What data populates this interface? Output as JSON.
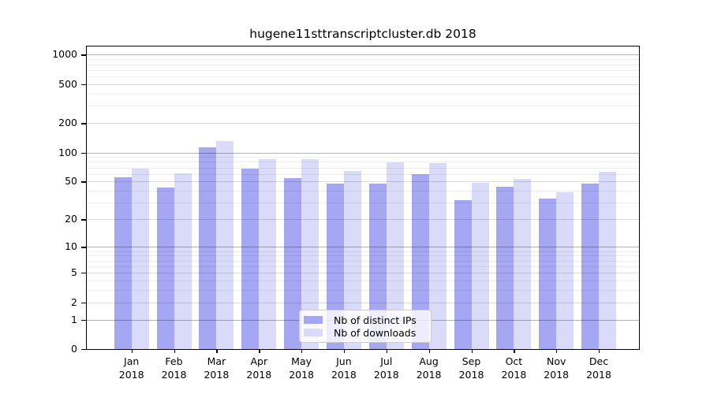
{
  "title": "hugene11sttranscriptcluster.db 2018",
  "colors": {
    "ips": "#a5a7f2",
    "downloads": "#d9dbf8"
  },
  "legend": {
    "items": [
      {
        "label": "Nb of distinct IPs",
        "color_key": "ips"
      },
      {
        "label": "Nb of downloads",
        "color_key": "downloads"
      }
    ]
  },
  "y_axis": {
    "tick_labels": [
      "0",
      "1",
      "2",
      "5",
      "10",
      "20",
      "50",
      "100",
      "200",
      "500",
      "1000"
    ]
  },
  "x_axis": {
    "months": [
      "Jan",
      "Feb",
      "Mar",
      "Apr",
      "May",
      "Jun",
      "Jul",
      "Aug",
      "Sep",
      "Oct",
      "Nov",
      "Dec"
    ],
    "year": "2018"
  },
  "chart_data": {
    "type": "bar",
    "title": "hugene11sttranscriptcluster.db 2018",
    "categories": [
      "Jan 2018",
      "Feb 2018",
      "Mar 2018",
      "Apr 2018",
      "May 2018",
      "Jun 2018",
      "Jul 2018",
      "Aug 2018",
      "Sep 2018",
      "Oct 2018",
      "Nov 2018",
      "Dec 2018"
    ],
    "series": [
      {
        "name": "Nb of distinct IPs",
        "values": [
          55,
          43,
          112,
          68,
          54,
          48,
          48,
          60,
          32,
          44,
          33,
          48
        ]
      },
      {
        "name": "Nb of downloads",
        "values": [
          68,
          61,
          132,
          85,
          85,
          64,
          79,
          77,
          49,
          53,
          39,
          63
        ]
      }
    ],
    "yscale": "log1p",
    "y_ticks": [
      0,
      1,
      2,
      5,
      10,
      20,
      50,
      100,
      200,
      500,
      1000
    ],
    "ylim": [
      0,
      1200
    ],
    "grid": true,
    "legend_position": "lower center"
  }
}
